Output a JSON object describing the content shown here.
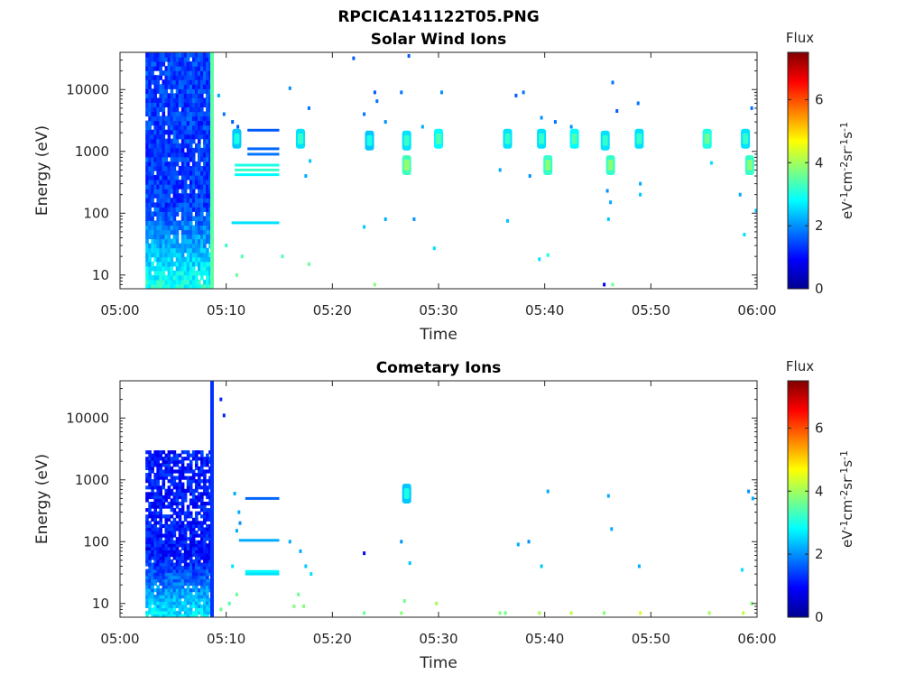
{
  "figure": {
    "filename_title": "RPCICA141122T05.PNG"
  },
  "chart_data": [
    {
      "type": "heatmap",
      "title": "Solar Wind Ions",
      "xlabel": "Time",
      "ylabel": "Energy (eV)",
      "x_ticks": [
        "05:00",
        "05:10",
        "05:20",
        "05:30",
        "05:40",
        "05:50",
        "06:00"
      ],
      "xlim_minutes": [
        0,
        60
      ],
      "y_ticks": [
        "10",
        "100",
        "1000",
        "10000"
      ],
      "y_scale": "log",
      "ylim": [
        6,
        40000
      ],
      "colorbar": {
        "label": "Flux",
        "unit_label": "eV-1cm-2sr-1s-1",
        "range": [
          0,
          7.5
        ],
        "ticks": [
          "0",
          "2",
          "4",
          "6"
        ],
        "colormap": "jet"
      },
      "dense_block": {
        "t_start": 2.4,
        "t_end": 8.6,
        "e_min": 6,
        "e_max": 40000,
        "base_level": 1.0
      },
      "vertical_line": {
        "t": 8.5,
        "level": 3.5
      },
      "horizontal_lines": [
        {
          "t_start": 12.0,
          "t_end": 15.0,
          "energy": 2200,
          "level": 1.6
        },
        {
          "t_start": 12.0,
          "t_end": 15.0,
          "energy": 1100,
          "level": 1.7
        },
        {
          "t_start": 12.0,
          "t_end": 15.0,
          "energy": 900,
          "level": 1.8
        },
        {
          "t_start": 10.8,
          "t_end": 15.0,
          "energy": 600,
          "level": 3.0
        },
        {
          "t_start": 10.8,
          "t_end": 15.0,
          "energy": 500,
          "level": 3.2
        },
        {
          "t_start": 10.8,
          "t_end": 15.0,
          "energy": 420,
          "level": 2.8
        },
        {
          "t_start": 10.5,
          "t_end": 15.0,
          "energy": 70,
          "level": 2.6
        }
      ],
      "blobs": [
        {
          "t": 11.0,
          "energy": 1600,
          "level": 2.4
        },
        {
          "t": 17.0,
          "energy": 1600,
          "level": 2.6
        },
        {
          "t": 23.5,
          "energy": 1500,
          "level": 2.4
        },
        {
          "t": 27.0,
          "energy": 600,
          "level": 3.3
        },
        {
          "t": 27.0,
          "energy": 1500,
          "level": 2.6
        },
        {
          "t": 30.0,
          "energy": 1600,
          "level": 2.8
        },
        {
          "t": 36.5,
          "energy": 1600,
          "level": 2.6
        },
        {
          "t": 39.7,
          "energy": 1600,
          "level": 2.6
        },
        {
          "t": 40.3,
          "energy": 600,
          "level": 3.2
        },
        {
          "t": 42.8,
          "energy": 1600,
          "level": 2.8
        },
        {
          "t": 45.7,
          "energy": 1500,
          "level": 2.6
        },
        {
          "t": 46.2,
          "energy": 600,
          "level": 3.2
        },
        {
          "t": 48.9,
          "energy": 1600,
          "level": 2.6
        },
        {
          "t": 55.3,
          "energy": 1600,
          "level": 3.0
        },
        {
          "t": 58.9,
          "energy": 1600,
          "level": 2.6
        },
        {
          "t": 59.3,
          "energy": 600,
          "level": 3.2
        }
      ],
      "points": [
        {
          "t": 9.3,
          "energy": 8000,
          "level": 2.2
        },
        {
          "t": 9.8,
          "energy": 4000,
          "level": 1.8
        },
        {
          "t": 10.6,
          "energy": 3000,
          "level": 1.6
        },
        {
          "t": 11.1,
          "energy": 2500,
          "level": 1.6
        },
        {
          "t": 16.0,
          "energy": 10500,
          "level": 2.0
        },
        {
          "t": 17.5,
          "energy": 400,
          "level": 2.2
        },
        {
          "t": 17.9,
          "energy": 700,
          "level": 2.4
        },
        {
          "t": 17.8,
          "energy": 5000,
          "level": 1.8
        },
        {
          "t": 22.0,
          "energy": 32000,
          "level": 1.6
        },
        {
          "t": 23.0,
          "energy": 4000,
          "level": 1.8
        },
        {
          "t": 24.2,
          "energy": 6500,
          "level": 1.8
        },
        {
          "t": 24.0,
          "energy": 9000,
          "level": 1.6
        },
        {
          "t": 25.0,
          "energy": 3000,
          "level": 2.0
        },
        {
          "t": 26.5,
          "energy": 9000,
          "level": 1.8
        },
        {
          "t": 27.2,
          "energy": 35000,
          "level": 1.6
        },
        {
          "t": 28.5,
          "energy": 2500,
          "level": 2.2
        },
        {
          "t": 30.3,
          "energy": 9000,
          "level": 2.0
        },
        {
          "t": 23.0,
          "energy": 60,
          "level": 2.4
        },
        {
          "t": 25.0,
          "energy": 80,
          "level": 2.2
        },
        {
          "t": 27.7,
          "energy": 80,
          "level": 2.0
        },
        {
          "t": 29.6,
          "energy": 27,
          "level": 2.6
        },
        {
          "t": 35.8,
          "energy": 500,
          "level": 2.2
        },
        {
          "t": 36.5,
          "energy": 75,
          "level": 2.4
        },
        {
          "t": 37.3,
          "energy": 8000,
          "level": 1.6
        },
        {
          "t": 38.0,
          "energy": 9000,
          "level": 1.8
        },
        {
          "t": 38.6,
          "energy": 400,
          "level": 2.0
        },
        {
          "t": 39.7,
          "energy": 3500,
          "level": 2.0
        },
        {
          "t": 39.5,
          "energy": 18,
          "level": 2.6
        },
        {
          "t": 40.3,
          "energy": 21,
          "level": 3.0
        },
        {
          "t": 41.0,
          "energy": 3000,
          "level": 1.8
        },
        {
          "t": 42.5,
          "energy": 2500,
          "level": 2.0
        },
        {
          "t": 45.9,
          "energy": 230,
          "level": 2.0
        },
        {
          "t": 46.2,
          "energy": 150,
          "level": 2.2
        },
        {
          "t": 46.0,
          "energy": 80,
          "level": 2.4
        },
        {
          "t": 46.4,
          "energy": 13000,
          "level": 1.8
        },
        {
          "t": 46.8,
          "energy": 4500,
          "level": 1.6
        },
        {
          "t": 48.8,
          "energy": 6000,
          "level": 1.8
        },
        {
          "t": 49.0,
          "energy": 200,
          "level": 2.4
        },
        {
          "t": 49.0,
          "energy": 300,
          "level": 2.2
        },
        {
          "t": 55.7,
          "energy": 650,
          "level": 2.6
        },
        {
          "t": 58.4,
          "energy": 200,
          "level": 2.2
        },
        {
          "t": 58.8,
          "energy": 45,
          "level": 2.6
        },
        {
          "t": 59.5,
          "energy": 5000,
          "level": 1.8
        },
        {
          "t": 59.9,
          "energy": 110,
          "level": 2.4
        },
        {
          "t": 45.6,
          "energy": 7,
          "level": 0.9
        },
        {
          "t": 46.4,
          "energy": 7,
          "level": 3.6
        },
        {
          "t": 24.0,
          "energy": 7,
          "level": 3.8
        },
        {
          "t": 15.3,
          "energy": 20,
          "level": 3.4
        },
        {
          "t": 17.8,
          "energy": 15,
          "level": 3.6
        },
        {
          "t": 11.0,
          "energy": 10,
          "level": 3.6
        },
        {
          "t": 11.5,
          "energy": 20,
          "level": 3.4
        },
        {
          "t": 10.0,
          "energy": 30,
          "level": 3.2
        }
      ]
    },
    {
      "type": "heatmap",
      "title": "Cometary Ions",
      "xlabel": "Time",
      "ylabel": "Energy (eV)",
      "x_ticks": [
        "05:00",
        "05:10",
        "05:20",
        "05:30",
        "05:40",
        "05:50",
        "06:00"
      ],
      "xlim_minutes": [
        0,
        60
      ],
      "y_ticks": [
        "10",
        "100",
        "1000",
        "10000"
      ],
      "y_scale": "log",
      "ylim": [
        6,
        40000
      ],
      "colorbar": {
        "label": "Flux",
        "unit_label": "eV-1cm-2sr-1s-1",
        "range": [
          0,
          7.5
        ],
        "ticks": [
          "0",
          "2",
          "4",
          "6"
        ],
        "colormap": "jet"
      },
      "dense_block": {
        "t_start": 2.4,
        "t_end": 8.6,
        "e_min": 6,
        "e_max": 3000,
        "base_level": 0.7
      },
      "vertical_line": {
        "t": 8.5,
        "level": 1.3
      },
      "horizontal_lines": [
        {
          "t_start": 11.8,
          "t_end": 15.0,
          "energy": 500,
          "level": 1.7
        },
        {
          "t_start": 11.2,
          "t_end": 15.0,
          "energy": 105,
          "level": 2.2
        },
        {
          "t_start": 11.8,
          "t_end": 15.0,
          "energy": 33,
          "level": 2.8
        },
        {
          "t_start": 11.8,
          "t_end": 15.0,
          "energy": 30,
          "level": 2.6
        }
      ],
      "blobs": [
        {
          "t": 27.0,
          "energy": 600,
          "level": 2.4
        }
      ],
      "points": [
        {
          "t": 9.5,
          "energy": 20000,
          "level": 1.2
        },
        {
          "t": 9.8,
          "energy": 11000,
          "level": 1.2
        },
        {
          "t": 10.8,
          "energy": 600,
          "level": 2.2
        },
        {
          "t": 11.2,
          "energy": 300,
          "level": 2.2
        },
        {
          "t": 11.3,
          "energy": 200,
          "level": 2.0
        },
        {
          "t": 11.0,
          "energy": 150,
          "level": 2.2
        },
        {
          "t": 10.6,
          "energy": 40,
          "level": 2.6
        },
        {
          "t": 16.0,
          "energy": 100,
          "level": 2.2
        },
        {
          "t": 17.0,
          "energy": 70,
          "level": 2.2
        },
        {
          "t": 17.5,
          "energy": 40,
          "level": 2.4
        },
        {
          "t": 18.0,
          "energy": 30,
          "level": 2.6
        },
        {
          "t": 23.0,
          "energy": 65,
          "level": 1.0
        },
        {
          "t": 26.5,
          "energy": 100,
          "level": 2.0
        },
        {
          "t": 27.3,
          "energy": 45,
          "level": 2.4
        },
        {
          "t": 37.5,
          "energy": 90,
          "level": 2.2
        },
        {
          "t": 38.5,
          "energy": 100,
          "level": 2.0
        },
        {
          "t": 39.7,
          "energy": 40,
          "level": 2.4
        },
        {
          "t": 40.3,
          "energy": 650,
          "level": 2.2
        },
        {
          "t": 46.0,
          "energy": 550,
          "level": 2.2
        },
        {
          "t": 46.3,
          "energy": 160,
          "level": 2.2
        },
        {
          "t": 48.9,
          "energy": 40,
          "level": 2.2
        },
        {
          "t": 58.6,
          "energy": 35,
          "level": 2.6
        },
        {
          "t": 59.2,
          "energy": 650,
          "level": 2.0
        },
        {
          "t": 59.6,
          "energy": 500,
          "level": 2.2
        },
        {
          "t": 9.5,
          "energy": 8,
          "level": 3.6
        },
        {
          "t": 10.3,
          "energy": 10,
          "level": 3.4
        },
        {
          "t": 11.0,
          "energy": 14,
          "level": 3.6
        },
        {
          "t": 16.4,
          "energy": 9,
          "level": 3.8
        },
        {
          "t": 16.8,
          "energy": 14,
          "level": 3.6
        },
        {
          "t": 17.3,
          "energy": 9,
          "level": 3.8
        },
        {
          "t": 23.0,
          "energy": 7,
          "level": 3.6
        },
        {
          "t": 26.5,
          "energy": 7,
          "level": 3.8
        },
        {
          "t": 26.8,
          "energy": 11,
          "level": 3.6
        },
        {
          "t": 29.8,
          "energy": 10,
          "level": 4.0
        },
        {
          "t": 35.8,
          "energy": 7,
          "level": 3.8
        },
        {
          "t": 36.3,
          "energy": 7,
          "level": 3.6
        },
        {
          "t": 39.5,
          "energy": 7,
          "level": 4.0
        },
        {
          "t": 42.5,
          "energy": 7,
          "level": 4.2
        },
        {
          "t": 45.6,
          "energy": 7,
          "level": 3.8
        },
        {
          "t": 49.0,
          "energy": 7,
          "level": 4.4
        },
        {
          "t": 55.5,
          "energy": 7,
          "level": 4.0
        },
        {
          "t": 58.7,
          "energy": 7,
          "level": 4.2
        },
        {
          "t": 59.5,
          "energy": 10,
          "level": 3.8
        }
      ]
    }
  ]
}
